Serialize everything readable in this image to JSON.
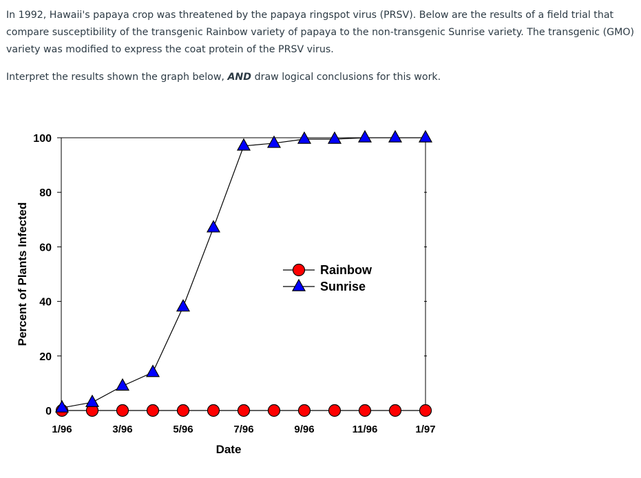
{
  "question": {
    "paragraph": "In 1992, Hawaii's papaya crop was threatened by the papaya ringspot virus (PRSV). Below are the results of a field trial that compare susceptibility of the transgenic Rainbow variety of papaya to the non-transgenic Sunrise variety. The transgenic (GMO) variety was modified to express the coat protein of the PRSV virus.",
    "prompt_before": "Interpret the results shown the graph below, ",
    "prompt_emphasis": "AND",
    "prompt_after": " draw logical conclusions for this work."
  },
  "chart_data": {
    "type": "line",
    "xlabel": "Date",
    "ylabel": "Percent of Plants Infected",
    "ylim": [
      0,
      100
    ],
    "y_ticks": [
      0,
      20,
      40,
      60,
      80,
      100
    ],
    "x": [
      "1/96",
      "2/96",
      "3/96",
      "4/96",
      "5/96",
      "6/96",
      "7/96",
      "8/96",
      "9/96",
      "10/96",
      "11/96",
      "12/96",
      "1/97"
    ],
    "x_tick_labels": [
      "1/96",
      "",
      "3/96",
      "",
      "5/96",
      "",
      "7/96",
      "",
      "9/96",
      "",
      "11/96",
      "",
      "1/97"
    ],
    "grid": false,
    "legend_position": "center-right",
    "series": [
      {
        "name": "Rainbow",
        "marker": "circle",
        "color": "#ff0000",
        "values": [
          0,
          0,
          0,
          0,
          0,
          0,
          0,
          0,
          0,
          0,
          0,
          0,
          0
        ]
      },
      {
        "name": "Sunrise",
        "marker": "triangle",
        "color": "#0000ff",
        "values": [
          1,
          3,
          9,
          14,
          38,
          67,
          97,
          98,
          99.5,
          99.5,
          100,
          100,
          100
        ]
      }
    ]
  }
}
